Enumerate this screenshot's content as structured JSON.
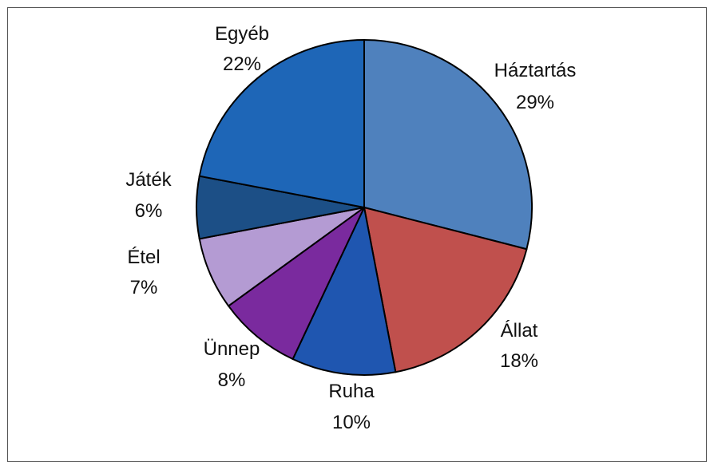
{
  "chart_data": {
    "type": "pie",
    "title": "",
    "slices": [
      {
        "label": "Háztartás",
        "pct_label": "29%",
        "value": 29,
        "color": "#4f81bd"
      },
      {
        "label": "Állat",
        "pct_label": "18%",
        "value": 18,
        "color": "#c0504d"
      },
      {
        "label": "Ruha",
        "pct_label": "10%",
        "value": 10,
        "color": "#1f56b0"
      },
      {
        "label": "Ünnep",
        "pct_label": "8%",
        "value": 8,
        "color": "#7a2a9e"
      },
      {
        "label": "Étel",
        "pct_label": "7%",
        "value": 7,
        "color": "#b49bd3"
      },
      {
        "label": "Játék",
        "pct_label": "6%",
        "value": 6,
        "color": "#1c4f86"
      },
      {
        "label": "Egyéb",
        "pct_label": "22%",
        "value": 22,
        "color": "#1e66b7"
      }
    ]
  }
}
